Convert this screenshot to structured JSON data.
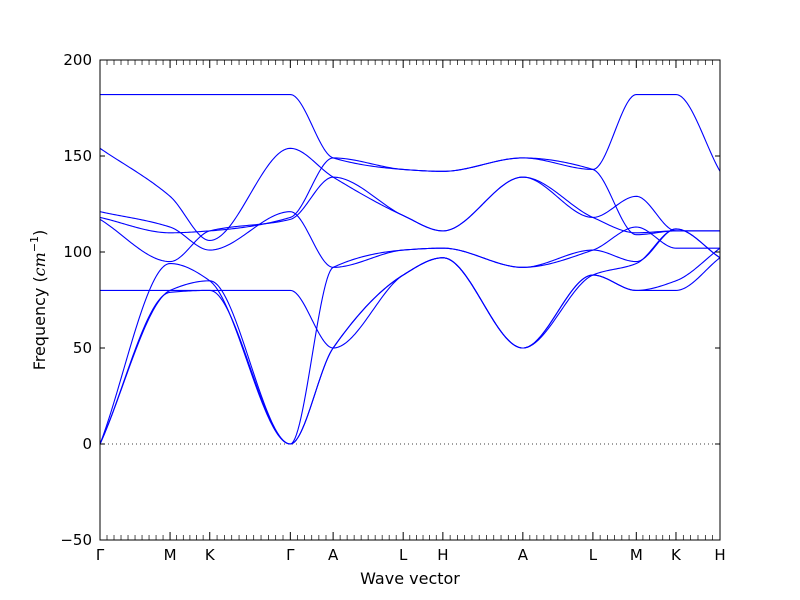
{
  "chart_data": {
    "type": "line",
    "title": "",
    "xlabel": "Wave vector",
    "ylabel_text": "Frequency (",
    "ylabel_unit_base": "cm",
    "ylabel_unit_exp": "−1",
    "ylabel_close": ")",
    "ylim": [
      -50,
      200
    ],
    "yticks": [
      -50,
      0,
      50,
      100,
      150,
      200
    ],
    "ytick_labels": [
      "−50",
      "0",
      "50",
      "100",
      "150",
      "200"
    ],
    "xlim": [
      0,
      1
    ],
    "high_symmetry_points": [
      {
        "label": "Γ",
        "x": 0.0
      },
      {
        "label": "M",
        "x": 0.113
      },
      {
        "label": "K",
        "x": 0.177
      },
      {
        "label": "Γ",
        "x": 0.307
      },
      {
        "label": "A",
        "x": 0.376
      },
      {
        "label": "L",
        "x": 0.489
      },
      {
        "label": "H",
        "x": 0.553
      },
      {
        "label": "A",
        "x": 0.682
      },
      {
        "label": "L",
        "x": 0.795
      },
      {
        "label": "M",
        "x": 0.865
      },
      {
        "label": "K",
        "x": 0.929
      },
      {
        "label": "H",
        "x": 1.0
      }
    ],
    "zero_line": {
      "y": 0,
      "style": "dotted"
    },
    "series_color": "#0000ff",
    "series": [
      {
        "points": [
          [
            0.0,
            182
          ],
          [
            0.307,
            182
          ],
          [
            0.376,
            149
          ],
          [
            0.489,
            143
          ],
          [
            0.553,
            142
          ],
          [
            0.682,
            149
          ],
          [
            0.795,
            143
          ],
          [
            0.865,
            182
          ],
          [
            0.929,
            182
          ],
          [
            1.0,
            142
          ]
        ]
      },
      {
        "points": [
          [
            0.0,
            154
          ],
          [
            0.113,
            129
          ],
          [
            0.177,
            106
          ],
          [
            0.307,
            154
          ],
          [
            0.376,
            139
          ],
          [
            0.489,
            119
          ],
          [
            0.553,
            111
          ],
          [
            0.682,
            139
          ],
          [
            0.795,
            118
          ],
          [
            0.865,
            129
          ],
          [
            0.929,
            111
          ],
          [
            1.0,
            111
          ]
        ]
      },
      {
        "points": [
          [
            0.0,
            121
          ],
          [
            0.113,
            113
          ],
          [
            0.177,
            101
          ],
          [
            0.307,
            121
          ],
          [
            0.376,
            92
          ],
          [
            0.489,
            101
          ],
          [
            0.553,
            102
          ],
          [
            0.682,
            92
          ],
          [
            0.795,
            101
          ],
          [
            0.865,
            113
          ],
          [
            0.929,
            102
          ],
          [
            1.0,
            102
          ]
        ]
      },
      {
        "points": [
          [
            0.0,
            118
          ],
          [
            0.113,
            110
          ],
          [
            0.177,
            111
          ],
          [
            0.307,
            118
          ],
          [
            0.376,
            149
          ],
          [
            0.489,
            143
          ],
          [
            0.553,
            142
          ],
          [
            0.682,
            149
          ],
          [
            0.795,
            143
          ],
          [
            0.865,
            109
          ],
          [
            0.929,
            111
          ],
          [
            1.0,
            111
          ]
        ]
      },
      {
        "points": [
          [
            0.0,
            117
          ],
          [
            0.113,
            95
          ],
          [
            0.177,
            111
          ],
          [
            0.307,
            117
          ],
          [
            0.376,
            139
          ],
          [
            0.489,
            119
          ],
          [
            0.553,
            111
          ],
          [
            0.682,
            139
          ],
          [
            0.795,
            118
          ],
          [
            0.865,
            110
          ],
          [
            0.929,
            111
          ],
          [
            1.0,
            111
          ]
        ]
      },
      {
        "points": [
          [
            0.0,
            80
          ],
          [
            0.307,
            80
          ],
          [
            0.376,
            50
          ],
          [
            0.489,
            88
          ],
          [
            0.553,
            97
          ],
          [
            0.682,
            50
          ],
          [
            0.795,
            88
          ],
          [
            0.865,
            80
          ],
          [
            0.929,
            80
          ],
          [
            1.0,
            97
          ]
        ]
      },
      {
        "points": [
          [
            0.0,
            0
          ],
          [
            0.113,
            94
          ],
          [
            0.177,
            85
          ],
          [
            0.307,
            0
          ],
          [
            0.376,
            92
          ],
          [
            0.489,
            101
          ],
          [
            0.553,
            102
          ],
          [
            0.682,
            92
          ],
          [
            0.795,
            101
          ],
          [
            0.865,
            95
          ],
          [
            0.929,
            112
          ],
          [
            1.0,
            97
          ]
        ]
      },
      {
        "points": [
          [
            0.0,
            0
          ],
          [
            0.113,
            80
          ],
          [
            0.177,
            85
          ],
          [
            0.307,
            0
          ],
          [
            0.376,
            50
          ],
          [
            0.489,
            88
          ],
          [
            0.553,
            97
          ],
          [
            0.682,
            50
          ],
          [
            0.795,
            88
          ],
          [
            0.865,
            94
          ],
          [
            0.929,
            112
          ],
          [
            1.0,
            97
          ]
        ]
      },
      {
        "points": [
          [
            0.0,
            0
          ],
          [
            0.113,
            79
          ],
          [
            0.177,
            80
          ],
          [
            0.307,
            0
          ],
          [
            0.376,
            50
          ],
          [
            0.489,
            88
          ],
          [
            0.553,
            97
          ],
          [
            0.682,
            50
          ],
          [
            0.795,
            88
          ],
          [
            0.865,
            80
          ],
          [
            0.929,
            85
          ],
          [
            1.0,
            102
          ]
        ]
      }
    ]
  }
}
